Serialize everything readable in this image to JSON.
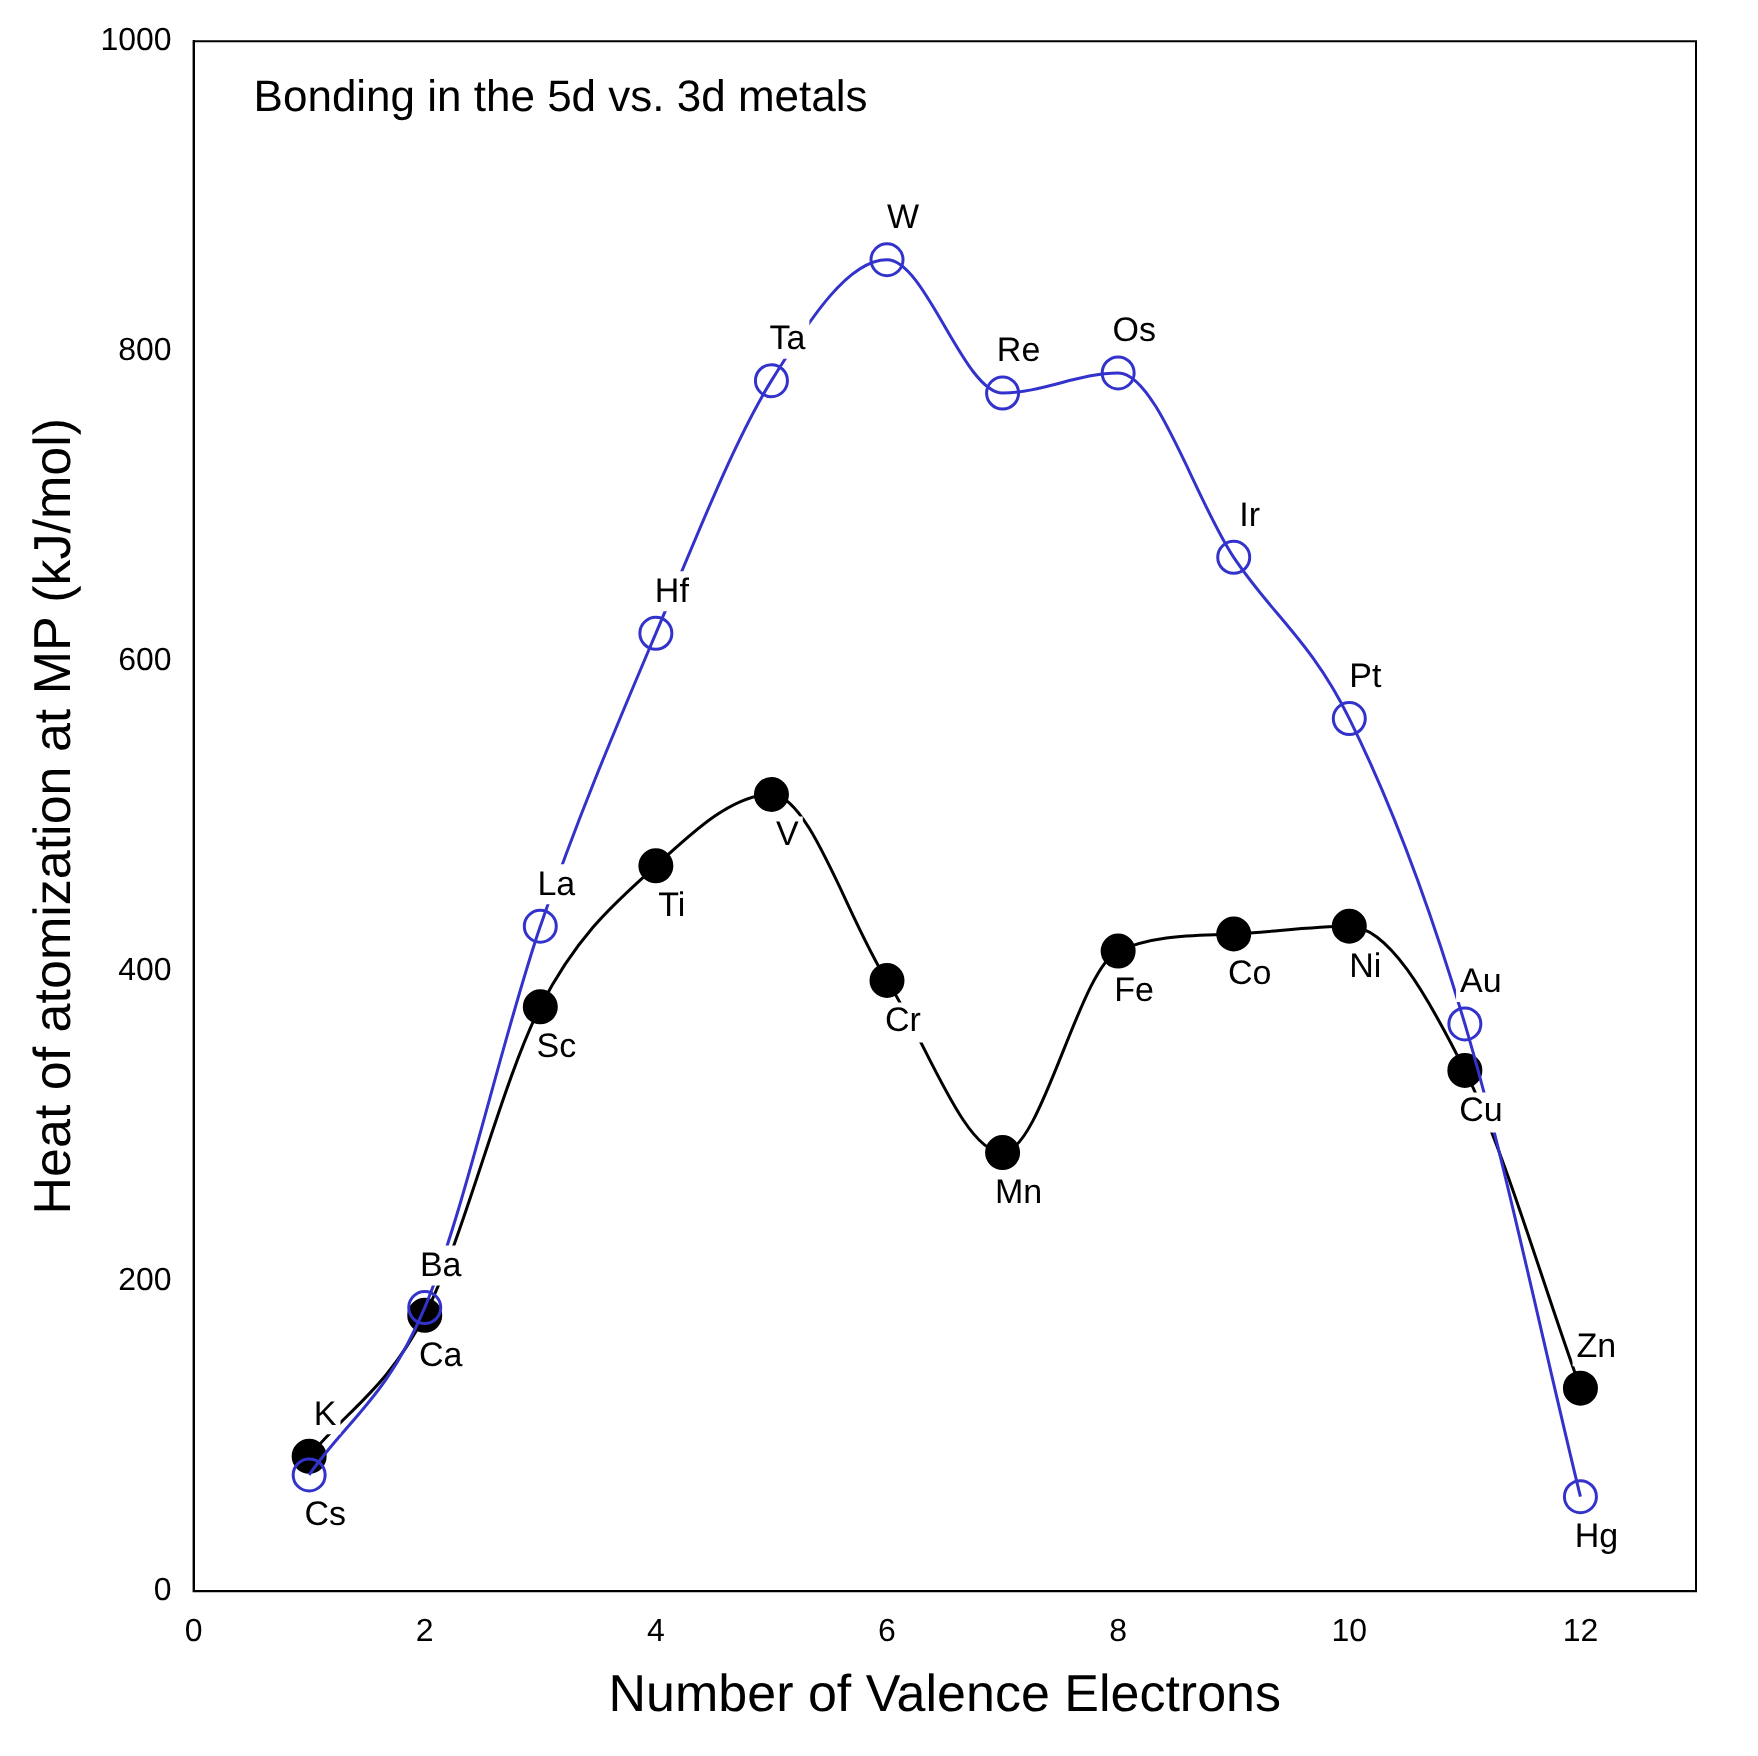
{
  "chart_data": {
    "type": "line",
    "title": "Bonding in the 5d vs. 3d metals",
    "xlabel": "Number of Valence Electrons",
    "ylabel": "Heat of atomization at MP (kJ/mol)",
    "x": [
      1,
      2,
      3,
      4,
      5,
      6,
      7,
      8,
      9,
      10,
      11,
      12
    ],
    "series": [
      {
        "color": "#000000",
        "values": [
          87,
          178,
          377,
          468,
          514,
          394,
          283,
          413,
          424,
          429,
          336,
          131
        ]
      },
      {
        "color": "#3333cc",
        "values": [
          75,
          183,
          429,
          618,
          781,
          859,
          773,
          786,
          667,
          563,
          366,
          61
        ]
      }
    ],
    "annotations": [
      {
        "text": "K",
        "x": 1,
        "y": 87
      },
      {
        "text": "Ca",
        "x": 2,
        "y": 178
      },
      {
        "text": "Sc",
        "x": 3,
        "y": 377
      },
      {
        "text": "Ti",
        "x": 4,
        "y": 468
      },
      {
        "text": "V",
        "x": 5,
        "y": 514
      },
      {
        "text": "Cr",
        "x": 6,
        "y": 394
      },
      {
        "text": "Mn",
        "x": 7,
        "y": 283
      },
      {
        "text": "Fe",
        "x": 8,
        "y": 413
      },
      {
        "text": "Co",
        "x": 9,
        "y": 424
      },
      {
        "text": "Ni",
        "x": 10,
        "y": 429
      },
      {
        "text": "Cu",
        "x": 11,
        "y": 336
      },
      {
        "text": "Zn",
        "x": 12,
        "y": 131
      },
      {
        "text": "Cs",
        "x": 1,
        "y": 75
      },
      {
        "text": "Ba",
        "x": 2,
        "y": 183
      },
      {
        "text": "La",
        "x": 3,
        "y": 429
      },
      {
        "text": "Hf",
        "x": 4,
        "y": 618
      },
      {
        "text": "Ta",
        "x": 5,
        "y": 781
      },
      {
        "text": "W",
        "x": 6,
        "y": 859
      },
      {
        "text": "Re",
        "x": 7,
        "y": 773
      },
      {
        "text": "Os",
        "x": 8,
        "y": 786
      },
      {
        "text": "Ir",
        "x": 9,
        "y": 667
      },
      {
        "text": "Pt",
        "x": 10,
        "y": 563
      },
      {
        "text": "Au",
        "x": 11,
        "y": 366
      },
      {
        "text": "Hg",
        "x": 12,
        "y": 61
      }
    ],
    "xlim": [
      0,
      13
    ],
    "xticks": [
      0,
      2,
      4,
      6,
      8,
      10,
      12
    ],
    "ylim": [
      0,
      1000
    ],
    "yticks": [
      0,
      200,
      400,
      600,
      800,
      1000
    ],
    "grid": false,
    "legend": false,
    "marker": "circle",
    "line_style": "solid"
  }
}
